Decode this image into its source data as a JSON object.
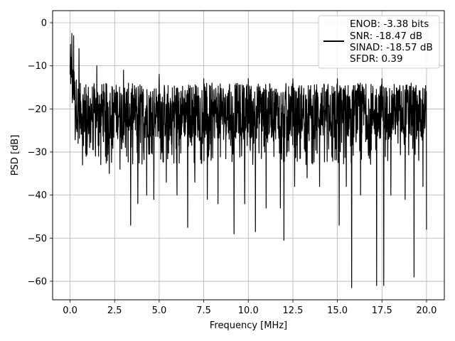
{
  "chart_data": {
    "type": "line",
    "title": "",
    "xlabel": "Frequency [MHz]",
    "ylabel": "PSD [dB]",
    "xlim": [
      -0.98,
      21.0
    ],
    "ylim": [
      -64.3,
      2.8
    ],
    "x_ticks": [
      0.0,
      2.5,
      5.0,
      7.5,
      10.0,
      12.5,
      15.0,
      17.5,
      20.0
    ],
    "x_tick_labels": [
      "0.0",
      "2.5",
      "5.0",
      "7.5",
      "10.0",
      "12.5",
      "15.0",
      "17.5",
      "20.0"
    ],
    "y_ticks": [
      0,
      -10,
      -20,
      -30,
      -40,
      -50,
      -60
    ],
    "y_tick_labels": [
      "0",
      "−10",
      "−20",
      "−30",
      "−40",
      "−50",
      "−60"
    ],
    "grid": true,
    "legend_position": "top-right",
    "legend_lines": [
      "ENOB: -3.38 bits",
      "SNR: -18.47 dB",
      "SINAD: -18.57 dB",
      "SFDR: 0.39"
    ],
    "series_color": "#000000",
    "series": [
      {
        "x_start": 0.0,
        "x_end": 20.0,
        "band_start": [
          -8,
          -2
        ],
        "band_end": [
          -27,
          -14
        ],
        "dips": [
          [
            0.0,
            -12
          ],
          [
            0.02,
            -5
          ],
          [
            0.05,
            -8
          ],
          [
            0.3,
            -25
          ],
          [
            0.45,
            -28
          ],
          [
            0.7,
            -33
          ],
          [
            0.9,
            -31
          ],
          [
            1.1,
            -29
          ],
          [
            1.6,
            -31
          ],
          [
            2.2,
            -35
          ],
          [
            2.8,
            -34
          ],
          [
            3.4,
            -47
          ],
          [
            3.8,
            -42
          ],
          [
            4.3,
            -40
          ],
          [
            4.7,
            -41
          ],
          [
            5.4,
            -37
          ],
          [
            6.0,
            -40
          ],
          [
            6.6,
            -47.5
          ],
          [
            7.0,
            -37
          ],
          [
            7.7,
            -41
          ],
          [
            8.3,
            -42
          ],
          [
            9.2,
            -49
          ],
          [
            9.8,
            -42
          ],
          [
            10.4,
            -48.5
          ],
          [
            11.0,
            -43
          ],
          [
            11.8,
            -43
          ],
          [
            12.0,
            -50.5
          ],
          [
            12.6,
            -38
          ],
          [
            13.3,
            -36
          ],
          [
            14.0,
            -38
          ],
          [
            15.1,
            -47
          ],
          [
            15.5,
            -38
          ],
          [
            15.8,
            -61.5
          ],
          [
            16.3,
            -40
          ],
          [
            17.2,
            -61
          ],
          [
            17.6,
            -61
          ],
          [
            18.0,
            -40
          ],
          [
            18.8,
            -41
          ],
          [
            19.3,
            -59
          ],
          [
            19.8,
            -38
          ],
          [
            20.0,
            -48
          ]
        ],
        "peaks": [
          [
            0.0,
            -0.3
          ],
          [
            0.05,
            -1
          ],
          [
            0.1,
            -2.5
          ],
          [
            0.2,
            -3
          ],
          [
            0.5,
            -6
          ],
          [
            1.5,
            -10
          ],
          [
            3.0,
            -11
          ],
          [
            5.0,
            -12
          ],
          [
            7.5,
            -13
          ],
          [
            10.0,
            -13
          ],
          [
            12.5,
            -13
          ],
          [
            15.0,
            -13
          ],
          [
            17.5,
            -13
          ],
          [
            20.0,
            -14
          ]
        ]
      }
    ]
  }
}
